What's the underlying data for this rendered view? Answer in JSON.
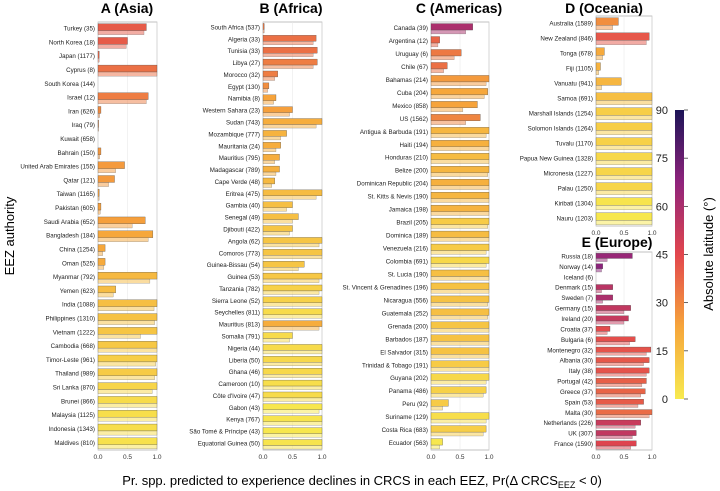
{
  "figure": {
    "ylabel": "EEZ authority",
    "xlabel": "Pr. spp. predicted to experience declines in CRCS in each EEZ, Pr(Δ CRCS",
    "xlabel_sub": "EEZ",
    "xlabel_tail": " < 0)",
    "colorbar_label": "Absolute latitude (°)",
    "colorbar_ticks": [
      "90",
      "75",
      "60",
      "45",
      "30",
      "15",
      "0"
    ]
  },
  "chart_data": [
    {
      "type": "bar",
      "panel": "A",
      "title": "A (Asia)",
      "orientation": "horizontal",
      "xlim": [
        0,
        1
      ],
      "xticks": [
        "0.0",
        "0.5",
        "1.0"
      ],
      "categories": [
        "Turkey (35)",
        "North Korea (18)",
        "Japan (1177)",
        "Cyprus (8)",
        "South Korea (144)",
        "Israel (12)",
        "Iran (626)",
        "Iraq (79)",
        "Kuwait (658)",
        "Bahrain (150)",
        "United Arab Emirates (155)",
        "Qatar (121)",
        "Taiwan (1165)",
        "Pakistan (605)",
        "Saudi Arabia (652)",
        "Bangladesh (184)",
        "China (1254)",
        "Oman (525)",
        "Myanmar (792)",
        "Yemen (623)",
        "India (1088)",
        "Philippines (1310)",
        "Vietnam (1222)",
        "Cambodia (668)",
        "Timor-Leste (961)",
        "Thailand (989)",
        "Sri Lanka (870)",
        "Brunei (866)",
        "Malaysia (1125)",
        "Indonesia (1343)",
        "Maldives (810)"
      ],
      "values": [
        0.82,
        0.5,
        0.02,
        1.0,
        0.0,
        0.85,
        0.05,
        0.01,
        0.0,
        0.05,
        0.45,
        0.28,
        0.02,
        0.05,
        0.8,
        0.93,
        0.12,
        0.12,
        1.0,
        0.3,
        1.0,
        1.0,
        1.0,
        1.0,
        1.0,
        1.0,
        1.0,
        1.0,
        1.0,
        1.0,
        1.0
      ],
      "uncertainty": [
        0.78,
        0.48,
        0.02,
        1.0,
        0.0,
        0.82,
        0.03,
        0.01,
        0.0,
        0.03,
        0.3,
        0.18,
        0.02,
        0.04,
        0.58,
        0.85,
        0.08,
        0.1,
        0.88,
        0.26,
        0.95,
        0.96,
        0.72,
        1.0,
        0.98,
        0.96,
        0.92,
        1.0,
        1.0,
        1.0,
        1.0
      ],
      "abs_latitude": [
        40,
        40,
        38,
        35,
        36,
        32,
        29,
        29,
        29,
        26,
        25,
        25,
        24,
        24,
        24,
        22,
        22,
        21,
        16,
        15,
        14,
        13,
        12,
        11,
        9,
        10,
        7,
        5,
        4,
        4,
        3
      ]
    },
    {
      "type": "bar",
      "panel": "B",
      "title": "B (Africa)",
      "orientation": "horizontal",
      "xlim": [
        0,
        1
      ],
      "xticks": [
        "0.0",
        "0.5",
        "1.0"
      ],
      "categories": [
        "South Africa (537)",
        "Algeria (33)",
        "Tunisia (33)",
        "Libya (27)",
        "Morocco (32)",
        "Egypt (130)",
        "Namibia (8)",
        "Western Sahara (23)",
        "Sudan (743)",
        "Mozambique (777)",
        "Mauritania (24)",
        "Mauritius (795)",
        "Madagascar (789)",
        "Cape Verde (48)",
        "Eritrea (475)",
        "Gambia (40)",
        "Senegal (49)",
        "Djibouti (422)",
        "Angola (62)",
        "Comoros (773)",
        "Guinea-Bissau (54)",
        "Guinea (53)",
        "Tanzania (782)",
        "Sierra Leone (52)",
        "Seychelles (811)",
        "Mauritius (813)",
        "Somalia (791)",
        "Nigeria (44)",
        "Liberia (50)",
        "Ghana (46)",
        "Cameroon (10)",
        "Côte d'Ivoire (47)",
        "Gabon (43)",
        "Kenya (767)",
        "São Tomé & Príncipe (43)",
        "Equatorial Guinea (50)"
      ],
      "values": [
        0.02,
        0.9,
        0.92,
        0.92,
        0.25,
        0.1,
        0.22,
        0.5,
        1.0,
        0.4,
        0.3,
        0.28,
        0.28,
        0.2,
        1.0,
        0.5,
        0.6,
        0.5,
        1.0,
        1.0,
        0.7,
        1.0,
        1.0,
        1.0,
        1.0,
        1.0,
        0.5,
        1.0,
        1.0,
        1.0,
        1.0,
        1.0,
        1.0,
        1.0,
        1.0,
        1.0
      ],
      "uncertainty": [
        0.02,
        0.85,
        0.85,
        0.85,
        0.2,
        0.08,
        0.18,
        0.45,
        0.9,
        0.3,
        0.22,
        0.2,
        0.22,
        0.15,
        0.9,
        0.4,
        0.5,
        0.45,
        0.95,
        1.0,
        0.6,
        0.95,
        0.95,
        1.0,
        1.0,
        0.95,
        0.45,
        1.0,
        1.0,
        1.0,
        1.0,
        1.0,
        0.95,
        1.0,
        1.0,
        1.0
      ],
      "abs_latitude": [
        33,
        35,
        35,
        32,
        32,
        28,
        23,
        24,
        20,
        18,
        20,
        20,
        19,
        16,
        15,
        14,
        14,
        12,
        12,
        12,
        12,
        11,
        8,
        8,
        5,
        20,
        5,
        5,
        6,
        6,
        4,
        5,
        1,
        2,
        1,
        2
      ]
    },
    {
      "type": "bar",
      "panel": "C",
      "title": "C (Americas)",
      "orientation": "horizontal",
      "xlim": [
        0,
        1
      ],
      "xticks": [
        "0.0",
        "0.5",
        "1.0"
      ],
      "categories": [
        "Canada (39)",
        "Argentina (12)",
        "Uruguay (6)",
        "Chile (67)",
        "Bahamas (214)",
        "Cuba (204)",
        "Mexico (858)",
        "US (1562)",
        "Antigua & Barbuda (191)",
        "Haiti (194)",
        "Honduras (210)",
        "Belize (200)",
        "Dominican Republic (204)",
        "St. Kitts & Nevis (190)",
        "Jamaica (198)",
        "Brazil (205)",
        "Dominica (189)",
        "Venezuela (216)",
        "Colombia (691)",
        "St. Lucia (190)",
        "St. Vincent & Grenadines (196)",
        "Nicaragua (556)",
        "Guatemala (252)",
        "Grenada (200)",
        "Barbados (187)",
        "El Salvador (315)",
        "Trinidad & Tobago (191)",
        "Guyana (202)",
        "Panama (486)",
        "Peru (92)",
        "Suriname (129)",
        "Costa Rica (683)",
        "Ecuador (563)"
      ],
      "values": [
        0.72,
        0.15,
        0.52,
        0.28,
        1.0,
        0.98,
        0.8,
        0.85,
        1.0,
        1.0,
        1.0,
        1.0,
        1.0,
        1.0,
        1.0,
        1.0,
        1.0,
        1.0,
        1.0,
        1.0,
        1.0,
        1.0,
        1.0,
        1.0,
        1.0,
        1.0,
        1.0,
        1.0,
        0.95,
        0.3,
        1.0,
        0.95,
        0.2
      ],
      "uncertainty": [
        0.6,
        0.12,
        0.4,
        0.22,
        0.95,
        0.92,
        0.55,
        0.6,
        0.95,
        1.0,
        1.0,
        0.98,
        1.0,
        1.0,
        1.0,
        0.98,
        1.0,
        0.95,
        0.95,
        1.0,
        1.0,
        0.98,
        0.98,
        1.0,
        1.0,
        1.0,
        1.0,
        0.95,
        0.9,
        0.2,
        0.95,
        0.9,
        0.15
      ],
      "abs_latitude": [
        60,
        38,
        33,
        35,
        25,
        22,
        23,
        30,
        17,
        19,
        15,
        17,
        19,
        17,
        18,
        10,
        15,
        10,
        6,
        14,
        13,
        13,
        14,
        12,
        13,
        13,
        10,
        6,
        8,
        10,
        4,
        9,
        1
      ]
    },
    {
      "type": "bar",
      "panel": "D",
      "title": "D (Oceania)",
      "orientation": "horizontal",
      "xlim": [
        0,
        1
      ],
      "xticks": [
        "0.0",
        "0.5",
        "1.0"
      ],
      "categories": [
        "Australia (1589)",
        "New Zealand (846)",
        "Tonga (678)",
        "Fiji (1105)",
        "Vanuatu (941)",
        "Samoa (691)",
        "Marshall Islands (1254)",
        "Solomon Islands (1264)",
        "Tuvalu (1170)",
        "Papua New Guinea (1328)",
        "Micronesia (1227)",
        "Palau (1250)",
        "Kiribati (1304)",
        "Nauru (1203)"
      ],
      "values": [
        0.4,
        0.95,
        0.15,
        0.08,
        0.45,
        1.0,
        1.0,
        1.0,
        1.0,
        1.0,
        1.0,
        1.0,
        1.0,
        1.0
      ],
      "uncertainty": [
        0.3,
        0.9,
        0.12,
        0.05,
        0.1,
        1.0,
        1.0,
        1.0,
        1.0,
        1.0,
        1.0,
        1.0,
        1.0,
        1.0
      ],
      "abs_latitude": [
        28,
        41,
        21,
        18,
        17,
        14,
        9,
        9,
        8,
        6,
        7,
        7,
        2,
        1
      ]
    },
    {
      "type": "bar",
      "panel": "E",
      "title": "E (Europe)",
      "orientation": "horizontal",
      "xlim": [
        0,
        1
      ],
      "xticks": [
        "0.0",
        "0.5",
        "1.0"
      ],
      "categories": [
        "Russia (18)",
        "Norway (14)",
        "Iceland (6)",
        "Denmark (15)",
        "Sweden (7)",
        "Germany (15)",
        "Ireland (20)",
        "Croatia (37)",
        "Bulgaria (6)",
        "Montenegro (32)",
        "Albania (30)",
        "Italy (38)",
        "Portugal (42)",
        "Greece (37)",
        "Spain (53)",
        "Malta (30)",
        "Netherlands (226)",
        "UK (307)",
        "France (1590)"
      ],
      "values": [
        0.65,
        0.12,
        0.0,
        0.3,
        0.3,
        0.62,
        0.58,
        0.25,
        0.7,
        0.98,
        0.95,
        0.95,
        0.9,
        0.88,
        0.85,
        1.0,
        0.8,
        0.72,
        0.72
      ],
      "uncertainty": [
        0.2,
        0.1,
        0.0,
        0.1,
        0.12,
        0.5,
        0.5,
        0.2,
        0.6,
        0.9,
        0.85,
        0.9,
        0.82,
        0.8,
        0.75,
        0.95,
        0.7,
        0.65,
        0.62
      ],
      "abs_latitude": [
        65,
        68,
        65,
        56,
        60,
        54,
        53,
        44,
        43,
        42,
        41,
        42,
        39,
        38,
        40,
        36,
        52,
        54,
        46
      ]
    }
  ]
}
